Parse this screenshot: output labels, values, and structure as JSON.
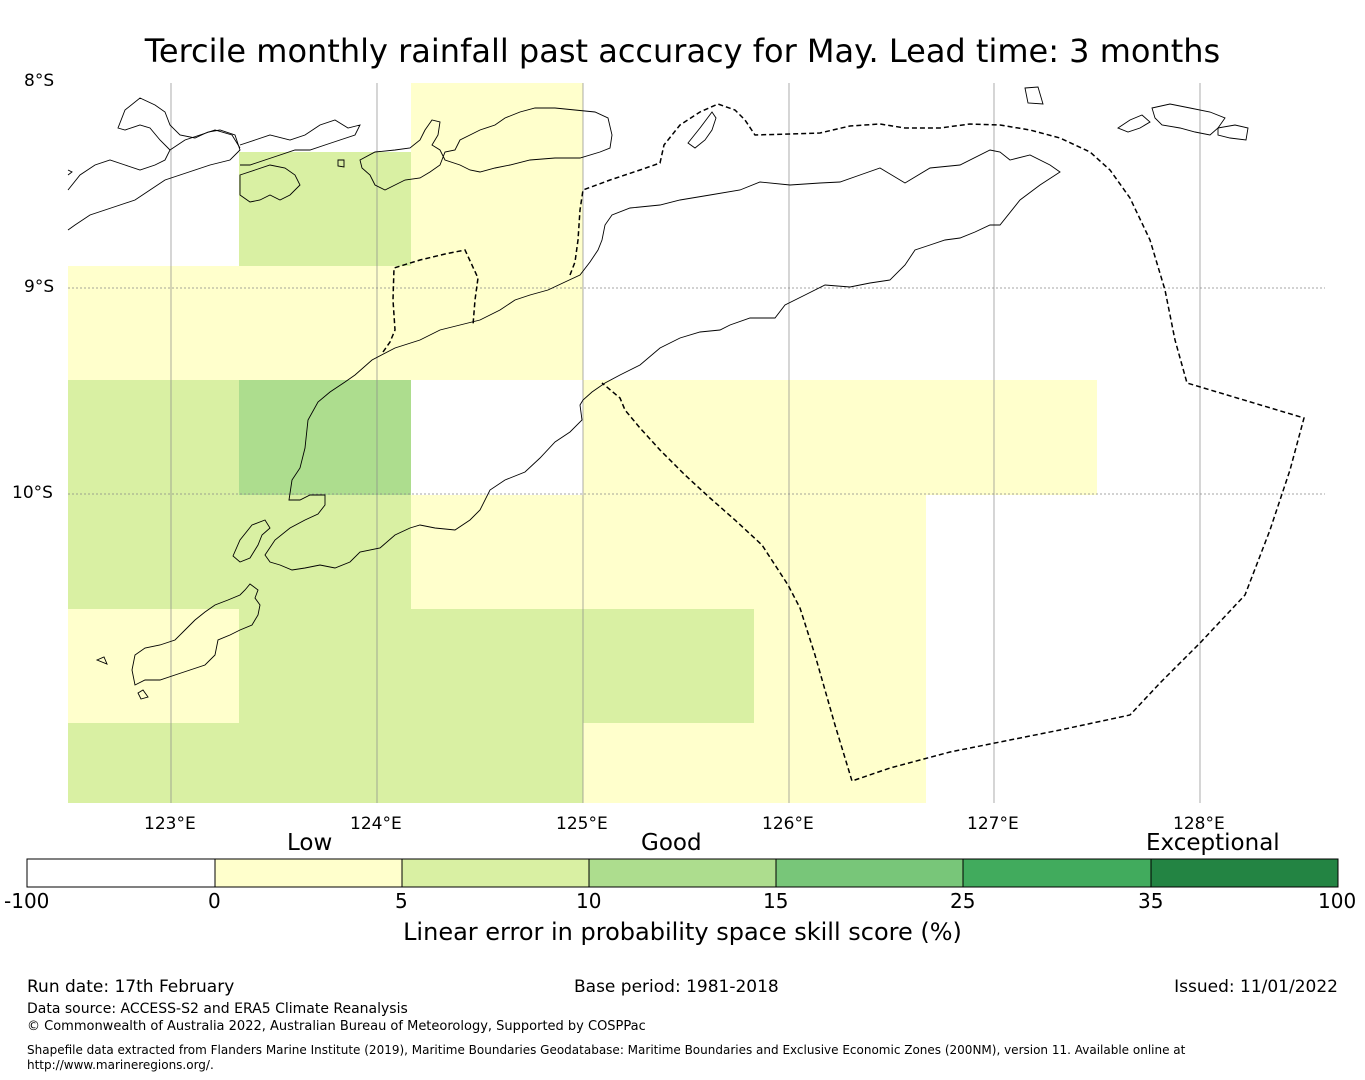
{
  "title": "Tercile monthly rainfall past accuracy for May. Lead time: 3 months",
  "map": {
    "lat_labels": [
      "8°S",
      "9°S",
      "10°S"
    ],
    "lon_labels": [
      "123°E",
      "124°E",
      "125°E",
      "126°E",
      "127°E",
      "128°E"
    ],
    "cells": [
      {
        "lon": 123.5,
        "lat": -8.5,
        "score": 6
      },
      {
        "lon": 123.5,
        "lat": -9.5,
        "score": 11
      },
      {
        "lon": 124.5,
        "lat": -8.5,
        "score": 3
      },
      {
        "lon": 124.5,
        "lat": -9.0,
        "score": 3
      }
    ]
  },
  "colorbar": {
    "categories": [
      "Low",
      "Good",
      "Exceptional"
    ],
    "ticks": [
      "-100",
      "0",
      "5",
      "10",
      "15",
      "25",
      "35",
      "100"
    ],
    "colors": [
      "#ffffff",
      "#ffffcc",
      "#d9f0a3",
      "#addd8e",
      "#78c679",
      "#41ab5d",
      "#238443"
    ],
    "label": "Linear error in probability space skill score (%)"
  },
  "footer": {
    "run_date": "Run date: 17th February",
    "base_period": "Base period: 1981-2018",
    "issued": "Issued: 11/01/2022",
    "data_source": "Data source: ACCESS-S2 and ERA5 Climate Reanalysis",
    "copyright": "© Commonwealth of Australia 2022, Australian Bureau of Meteorology, Supported by COSPPac",
    "shapefile_line1": "Shapefile data extracted from Flanders Marine Institute (2019), Maritime Boundaries Geodatabase: Maritime Boundaries and Exclusive Economic Zones (200NM), version 11. Available online at",
    "shapefile_line2": "http://www.marineregions.org/."
  }
}
